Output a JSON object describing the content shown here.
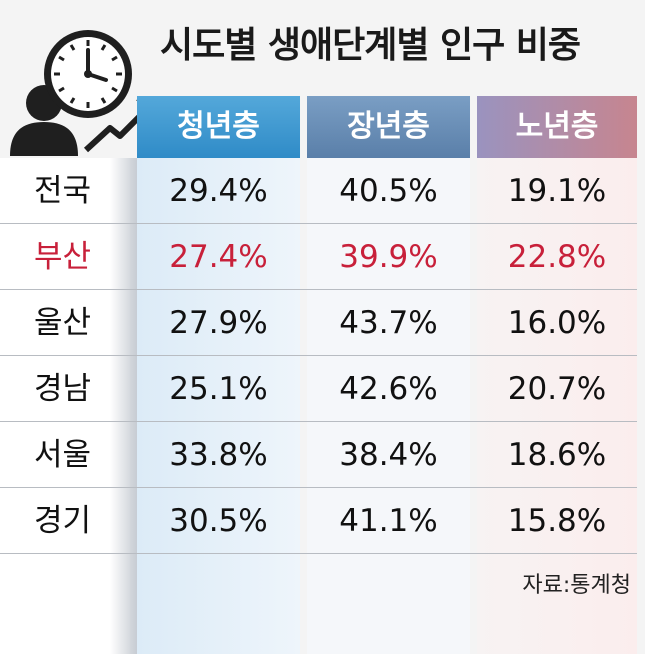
{
  "title": "시도별 생애단계별 인구 비중",
  "source": "자료:통계청",
  "icon": "person-clock-growth-icon",
  "colors": {
    "highlight": "#c8203a",
    "youth_header": "#3a93cd",
    "prime_header": "#6a8fb8",
    "senior_header": "#b48a9c"
  },
  "chart_data": {
    "type": "table",
    "title": "시도별 생애단계별 인구 비중",
    "columns": [
      "청년층",
      "장년층",
      "노년층"
    ],
    "highlight_row": "부산",
    "rows": [
      {
        "region": "전국",
        "values": [
          "29.4%",
          "40.5%",
          "19.1%"
        ]
      },
      {
        "region": "부산",
        "values": [
          "27.4%",
          "39.9%",
          "22.8%"
        ]
      },
      {
        "region": "울산",
        "values": [
          "27.9%",
          "43.7%",
          "16.0%"
        ]
      },
      {
        "region": "경남",
        "values": [
          "25.1%",
          "42.6%",
          "20.7%"
        ]
      },
      {
        "region": "서울",
        "values": [
          "33.8%",
          "38.4%",
          "18.6%"
        ]
      },
      {
        "region": "경기",
        "values": [
          "30.5%",
          "41.1%",
          "15.8%"
        ]
      }
    ]
  }
}
